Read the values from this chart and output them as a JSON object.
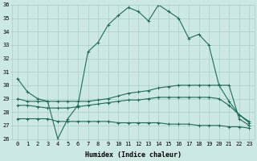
{
  "xlabel": "Humidex (Indice chaleur)",
  "bg_color": "#cce8e4",
  "line_color": "#1e6b5a",
  "grid_color": "#aacfca",
  "x_hours": [
    0,
    1,
    2,
    3,
    4,
    5,
    6,
    7,
    8,
    9,
    10,
    11,
    12,
    13,
    14,
    15,
    16,
    17,
    18,
    19,
    20,
    21,
    22,
    23
  ],
  "main_line": [
    30.5,
    29.5,
    29.0,
    28.8,
    26.0,
    27.5,
    28.5,
    32.5,
    33.2,
    34.5,
    35.2,
    35.8,
    35.5,
    34.8,
    36.0,
    35.5,
    35.0,
    33.5,
    33.8,
    33.0,
    30.0,
    30.0,
    27.5,
    27.0
  ],
  "line2": [
    29.0,
    28.8,
    28.8,
    28.8,
    28.8,
    28.8,
    28.8,
    28.8,
    28.9,
    29.0,
    29.2,
    29.4,
    29.5,
    29.6,
    29.8,
    29.9,
    30.0,
    30.0,
    30.0,
    30.0,
    30.0,
    28.8,
    27.8,
    27.2
  ],
  "line3": [
    28.5,
    28.5,
    28.4,
    28.3,
    28.3,
    28.3,
    28.4,
    28.5,
    28.6,
    28.7,
    28.8,
    28.9,
    28.9,
    29.0,
    29.1,
    29.1,
    29.1,
    29.1,
    29.1,
    29.1,
    29.0,
    28.5,
    27.8,
    27.3
  ],
  "line4": [
    27.5,
    27.5,
    27.5,
    27.5,
    27.3,
    27.3,
    27.3,
    27.3,
    27.3,
    27.3,
    27.2,
    27.2,
    27.2,
    27.2,
    27.2,
    27.1,
    27.1,
    27.1,
    27.0,
    27.0,
    27.0,
    26.9,
    26.9,
    26.8
  ],
  "ylim": [
    26,
    36
  ],
  "xlim_min": -0.5,
  "xlim_max": 23.5,
  "yticks": [
    26,
    27,
    28,
    29,
    30,
    31,
    32,
    33,
    34,
    35,
    36
  ],
  "xticks": [
    0,
    1,
    2,
    3,
    4,
    5,
    6,
    7,
    8,
    9,
    10,
    11,
    12,
    13,
    14,
    15,
    16,
    17,
    18,
    19,
    20,
    21,
    22,
    23
  ],
  "tick_fontsize": 5,
  "xlabel_fontsize": 6,
  "lw": 0.8,
  "ms": 2.5
}
